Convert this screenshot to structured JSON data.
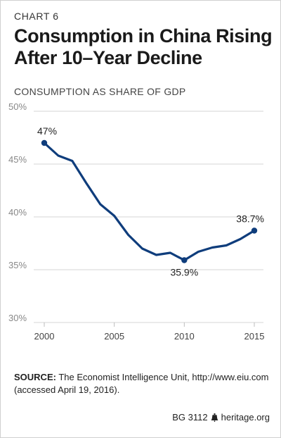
{
  "header": {
    "kicker": "CHART 6",
    "title": "Consumption in China Rising After 10–Year Decline",
    "subtitle": "CONSUMPTION AS SHARE OF GDP"
  },
  "chart_data": {
    "type": "line",
    "title": "Consumption in China Rising After 10–Year Decline",
    "ylabel": "CONSUMPTION AS SHARE OF GDP",
    "xlabel": "",
    "xlim": [
      2000,
      2015
    ],
    "ylim": [
      30,
      50
    ],
    "xticks": [
      2000,
      2005,
      2010,
      2015
    ],
    "yticks": [
      30,
      35,
      40,
      45,
      50
    ],
    "ytick_format": "%",
    "grid": "horizontal",
    "line_color": "#0f3d7c",
    "x": [
      2000,
      2001,
      2002,
      2003,
      2004,
      2005,
      2006,
      2007,
      2008,
      2009,
      2010,
      2011,
      2012,
      2013,
      2014,
      2015
    ],
    "values": [
      47.0,
      45.8,
      45.3,
      43.2,
      41.2,
      40.1,
      38.3,
      37.0,
      36.4,
      36.6,
      35.9,
      36.7,
      37.1,
      37.3,
      37.9,
      38.7
    ],
    "annotations": [
      {
        "x": 2000,
        "y": 47.0,
        "text": "47%",
        "position": "above"
      },
      {
        "x": 2010,
        "y": 35.9,
        "text": "35.9%",
        "position": "below"
      },
      {
        "x": 2015,
        "y": 38.7,
        "text": "38.7%",
        "position": "above"
      }
    ]
  },
  "source": {
    "label": "SOURCE:",
    "text": "The Economist Intelligence Unit, http://www.eiu.com (accessed April 19, 2016)."
  },
  "footer": {
    "code": "BG 3112",
    "site": "heritage.org"
  },
  "icons": {
    "brand": "liberty-bell-icon"
  }
}
